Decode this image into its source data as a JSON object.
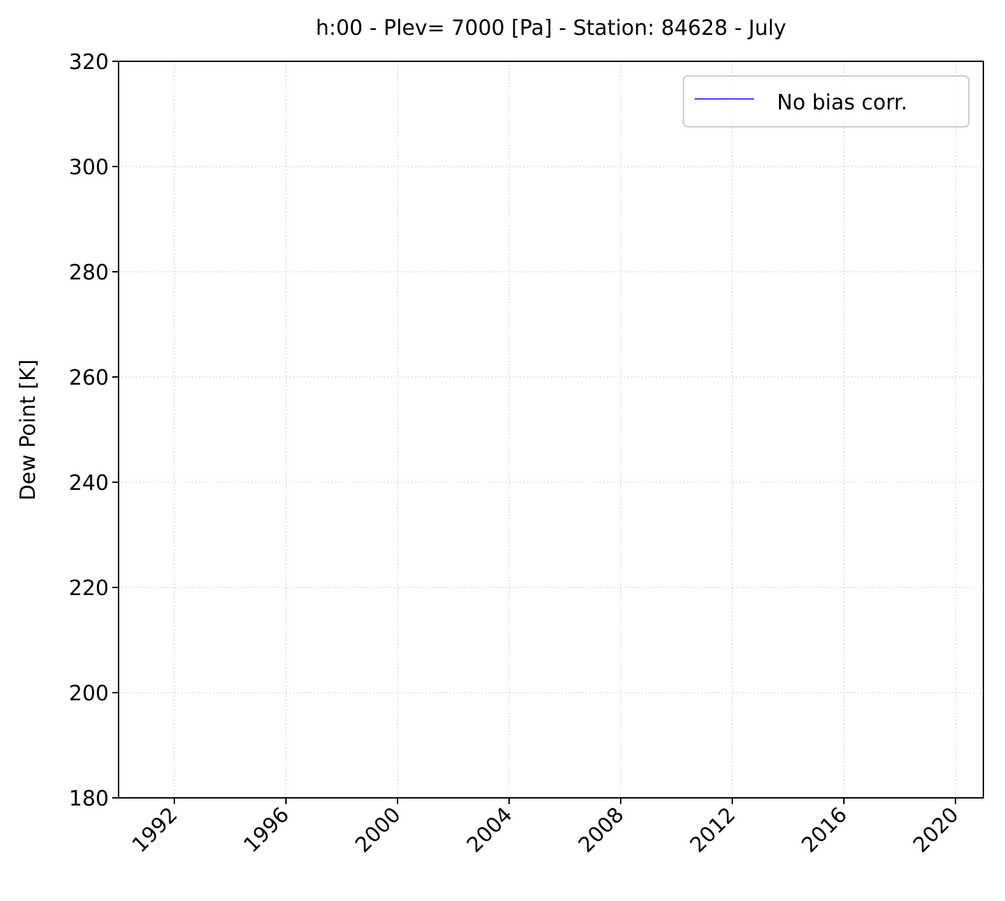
{
  "chart_data": {
    "type": "line",
    "title": "h:00 - Plev= 7000 [Pa] - Station: 84628 - July",
    "xlabel": "",
    "ylabel": "Dew Point [K]",
    "x_ticks": [
      "1992",
      "1996",
      "2000",
      "2004",
      "2008",
      "2012",
      "2016",
      "2020"
    ],
    "y_ticks": [
      "180",
      "200",
      "220",
      "240",
      "260",
      "280",
      "300",
      "320"
    ],
    "xlim": [
      1990,
      2021
    ],
    "ylim": [
      180,
      320
    ],
    "grid": true,
    "legend_position": "top-right",
    "series": [
      {
        "name": "No bias corr.",
        "color": "#0000ff",
        "x": [],
        "y": []
      }
    ]
  }
}
